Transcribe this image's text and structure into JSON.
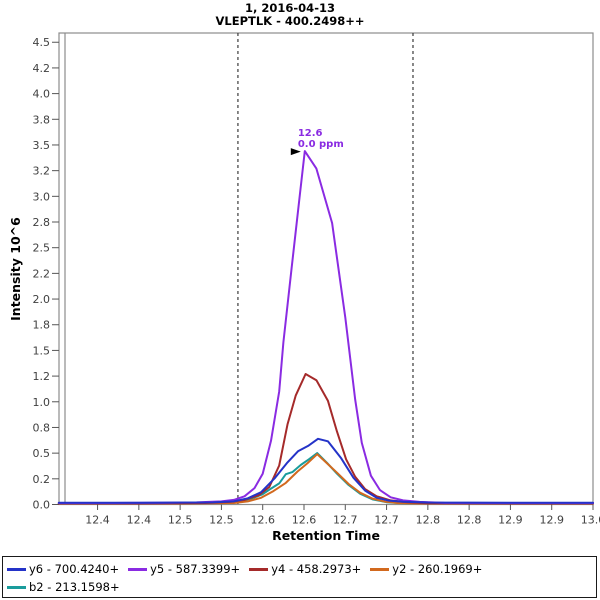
{
  "title": {
    "line1": "1, 2016-04-13",
    "line2": "VLEPTLK - 400.2498++"
  },
  "axes": {
    "x_label": "Retention Time",
    "y_label": "Intensity 10^6"
  },
  "chart_data": {
    "type": "line",
    "title": "1, 2016-04-13 / VLEPTLK - 400.2498++",
    "xlabel": "Retention Time",
    "ylabel": "Intensity 10^6",
    "x_axis": {
      "min": 12.3533,
      "max": 13.0,
      "tick_start": 12.4,
      "tick_step": 0.05,
      "tick_labels": [
        "12.4",
        "12.4",
        "12.5",
        "12.5",
        "12.6",
        "12.6",
        "12.7",
        "12.7",
        "12.8",
        "12.8",
        "12.9",
        "12.9",
        "13.0"
      ]
    },
    "y_axis": {
      "min": 0,
      "max": 4.59,
      "tick_step": 0.25,
      "tick_labels": [
        "0.0",
        "0.2",
        "0.5",
        "0.8",
        "1.0",
        "1.2",
        "1.5",
        "1.8",
        "2.0",
        "2.2",
        "2.5",
        "2.8",
        "3.0",
        "3.2",
        "3.5",
        "3.8",
        "4.0",
        "4.2",
        "4.5"
      ]
    },
    "grid": false,
    "legend_position": "bottom",
    "peak_boundaries": [
      12.57,
      12.782
    ],
    "boundary_color": "#3a3a3a",
    "annotation": {
      "rt_label": "12.6",
      "ppm_label": "0.0 ppm",
      "rt": 12.651,
      "intensity": 3.44,
      "color": "#8A2BE2",
      "arrow_color": "#000000"
    },
    "draw_order": [
      "b2",
      "y2",
      "y4",
      "y5",
      "y6"
    ],
    "series": [
      {
        "id": "y6",
        "name": "y6 - 700.4240+",
        "color": "#2433C8",
        "points": [
          [
            12.353,
            0.018
          ],
          [
            12.45,
            0.018
          ],
          [
            12.54,
            0.02
          ],
          [
            12.565,
            0.03
          ],
          [
            12.582,
            0.06
          ],
          [
            12.598,
            0.12
          ],
          [
            12.615,
            0.26
          ],
          [
            12.63,
            0.41
          ],
          [
            12.643,
            0.52
          ],
          [
            12.655,
            0.57
          ],
          [
            12.667,
            0.64
          ],
          [
            12.679,
            0.615
          ],
          [
            12.695,
            0.45
          ],
          [
            12.71,
            0.26
          ],
          [
            12.724,
            0.135
          ],
          [
            12.738,
            0.065
          ],
          [
            12.753,
            0.038
          ],
          [
            12.77,
            0.026
          ],
          [
            12.8,
            0.019
          ],
          [
            12.9,
            0.018
          ],
          [
            13.0,
            0.018
          ]
        ]
      },
      {
        "id": "y5",
        "name": "y5 - 587.3399+",
        "color": "#8A2BE2",
        "points": [
          [
            12.353,
            0.015
          ],
          [
            12.42,
            0.015
          ],
          [
            12.48,
            0.018
          ],
          [
            12.52,
            0.02
          ],
          [
            12.55,
            0.03
          ],
          [
            12.565,
            0.045
          ],
          [
            12.578,
            0.08
          ],
          [
            12.59,
            0.16
          ],
          [
            12.6,
            0.3
          ],
          [
            12.61,
            0.62
          ],
          [
            12.62,
            1.1
          ],
          [
            12.625,
            1.58
          ],
          [
            12.635,
            2.3
          ],
          [
            12.645,
            3.02
          ],
          [
            12.651,
            3.44
          ],
          [
            12.665,
            3.27
          ],
          [
            12.684,
            2.74
          ],
          [
            12.7,
            1.82
          ],
          [
            12.712,
            1.02
          ],
          [
            12.72,
            0.6
          ],
          [
            12.731,
            0.28
          ],
          [
            12.742,
            0.14
          ],
          [
            12.755,
            0.07
          ],
          [
            12.77,
            0.04
          ],
          [
            12.79,
            0.025
          ],
          [
            12.82,
            0.016
          ],
          [
            12.9,
            0.015
          ],
          [
            13.0,
            0.015
          ]
        ]
      },
      {
        "id": "y4",
        "name": "y4 - 458.2973+",
        "color": "#A52A2A",
        "points": [
          [
            12.353,
            0.01
          ],
          [
            12.45,
            0.01
          ],
          [
            12.53,
            0.015
          ],
          [
            12.56,
            0.025
          ],
          [
            12.578,
            0.045
          ],
          [
            12.595,
            0.09
          ],
          [
            12.608,
            0.17
          ],
          [
            12.62,
            0.38
          ],
          [
            12.63,
            0.78
          ],
          [
            12.64,
            1.06
          ],
          [
            12.652,
            1.27
          ],
          [
            12.665,
            1.21
          ],
          [
            12.679,
            1.01
          ],
          [
            12.69,
            0.71
          ],
          [
            12.701,
            0.44
          ],
          [
            12.712,
            0.27
          ],
          [
            12.724,
            0.15
          ],
          [
            12.738,
            0.08
          ],
          [
            12.755,
            0.04
          ],
          [
            12.775,
            0.022
          ],
          [
            12.8,
            0.012
          ],
          [
            12.9,
            0.01
          ],
          [
            13.0,
            0.01
          ]
        ]
      },
      {
        "id": "y2",
        "name": "y2 - 260.1969+",
        "color": "#D2691E",
        "points": [
          [
            12.353,
            0.01
          ],
          [
            12.5,
            0.01
          ],
          [
            12.565,
            0.015
          ],
          [
            12.582,
            0.03
          ],
          [
            12.598,
            0.065
          ],
          [
            12.613,
            0.13
          ],
          [
            12.628,
            0.21
          ],
          [
            12.642,
            0.32
          ],
          [
            12.654,
            0.4
          ],
          [
            12.666,
            0.49
          ],
          [
            12.678,
            0.4
          ],
          [
            12.69,
            0.31
          ],
          [
            12.704,
            0.2
          ],
          [
            12.718,
            0.115
          ],
          [
            12.733,
            0.057
          ],
          [
            12.748,
            0.028
          ],
          [
            12.765,
            0.014
          ],
          [
            12.79,
            0.01
          ],
          [
            13.0,
            0.01
          ]
        ]
      },
      {
        "id": "b2",
        "name": "b2 - 213.1598+",
        "color": "#1A9C9C",
        "points": [
          [
            12.353,
            0.012
          ],
          [
            12.5,
            0.012
          ],
          [
            12.558,
            0.018
          ],
          [
            12.573,
            0.032
          ],
          [
            12.588,
            0.062
          ],
          [
            12.6,
            0.1
          ],
          [
            12.61,
            0.155
          ],
          [
            12.62,
            0.205
          ],
          [
            12.628,
            0.295
          ],
          [
            12.636,
            0.315
          ],
          [
            12.646,
            0.385
          ],
          [
            12.656,
            0.44
          ],
          [
            12.666,
            0.5
          ],
          [
            12.678,
            0.405
          ],
          [
            12.69,
            0.3
          ],
          [
            12.704,
            0.19
          ],
          [
            12.718,
            0.105
          ],
          [
            12.733,
            0.05
          ],
          [
            12.75,
            0.022
          ],
          [
            12.77,
            0.013
          ],
          [
            12.8,
            0.012
          ],
          [
            13.0,
            0.012
          ]
        ]
      }
    ]
  },
  "legend": {
    "rows": [
      [
        "y6",
        "y5",
        "y4",
        "y2"
      ],
      [
        "b2"
      ]
    ]
  }
}
